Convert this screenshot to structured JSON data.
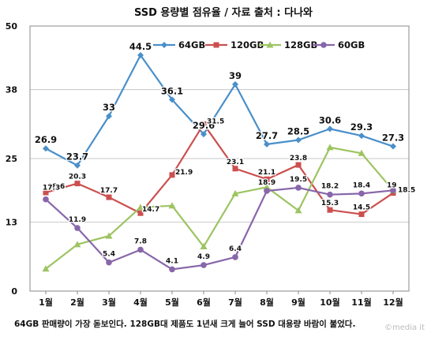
{
  "chart_data": {
    "type": "line",
    "title": "SSD 용량별 점유율 / 자료 출처 : 다나와",
    "categories": [
      "1월",
      "2월",
      "3월",
      "4월",
      "5월",
      "6월",
      "7월",
      "8월",
      "9월",
      "10월",
      "11월",
      "12월"
    ],
    "y_ticks": [
      0,
      13,
      25,
      38,
      50
    ],
    "ylim": [
      0,
      50
    ],
    "grid": true,
    "legend_position": "top",
    "series": [
      {
        "name": "64GB",
        "color": "#4A8FC9",
        "marker": "diamond",
        "values": [
          26.9,
          23.7,
          33,
          44.5,
          36.1,
          29.6,
          39,
          27.7,
          28.5,
          30.6,
          29.3,
          27.3
        ],
        "labels": [
          "26.9",
          "23.7",
          "33",
          "44.5",
          "36.1",
          "29.6",
          "39",
          "27.7",
          "28.5",
          "30.6",
          "29.3",
          "27.3"
        ]
      },
      {
        "name": "120GB",
        "color": "#CC4F4F",
        "marker": "square",
        "values": [
          18.6,
          20.3,
          17.7,
          14.7,
          21.9,
          31.5,
          23.1,
          21.1,
          23.8,
          15.3,
          14.5,
          18.5
        ],
        "labels": [
          "18.6",
          "20.3",
          "17.7",
          "14.7",
          "21.9",
          "31.5",
          "23.1",
          "21.1",
          "23.8",
          "15.3",
          "14.5",
          "18.5"
        ]
      },
      {
        "name": "128GB",
        "color": "#9DC461",
        "marker": "triangle",
        "values": [
          4.2,
          8.8,
          10.4,
          15.8,
          16.1,
          8.4,
          18.4,
          19.6,
          15.2,
          27.1,
          26,
          19
        ],
        "labels": [
          "",
          "",
          "",
          "",
          "",
          "",
          "",
          "",
          "",
          "",
          "",
          "19"
        ]
      },
      {
        "name": "60GB",
        "color": "#8866AA",
        "marker": "circle",
        "values": [
          17.3,
          11.9,
          5.4,
          7.8,
          4.1,
          4.9,
          6.4,
          18.9,
          19.5,
          18.2,
          18.4,
          19
        ],
        "labels": [
          "17.3",
          "11.9",
          "5.4",
          "7.8",
          "4.1",
          "4.9",
          "6.4",
          "18.9",
          "19.5",
          "18.2",
          "18.4",
          ""
        ]
      }
    ]
  },
  "caption": "64GB 판매량이 가장 돋보인다. 128GB대 제품도 1년새 크게 늘어 SSD 대용량 바람이 불었다.",
  "watermark": "©media it"
}
